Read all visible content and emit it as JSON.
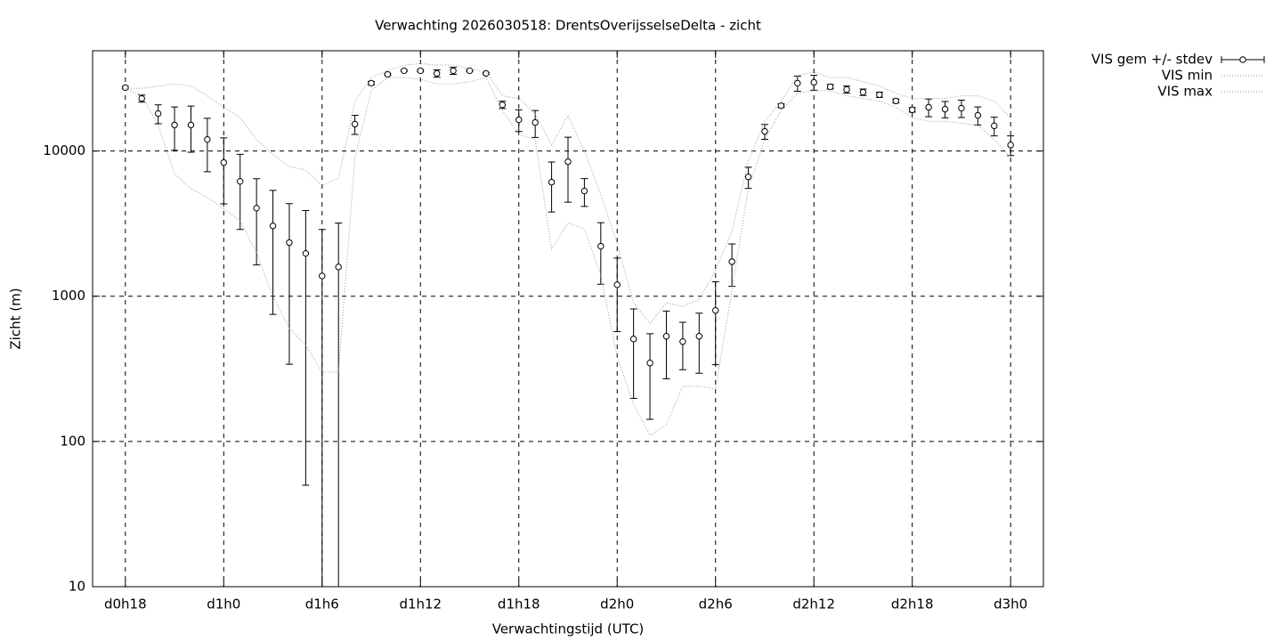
{
  "chart_data": {
    "type": "errorbar",
    "title": "Verwachting 2026030518: DrentsOverijsselseDelta - zicht",
    "x_label": "Verwachtingstijd (UTC)",
    "y_label": "Zicht (m)",
    "log_y": true,
    "grid": true,
    "legend": "outside-top-right",
    "xlim": [
      16,
      74
    ],
    "ylim": [
      10,
      49000
    ],
    "xticks": [
      {
        "value": 18,
        "label": "d0h18"
      },
      {
        "value": 24,
        "label": "d1h0"
      },
      {
        "value": 30,
        "label": "d1h6"
      },
      {
        "value": 36,
        "label": "d1h12"
      },
      {
        "value": 42,
        "label": "d1h18"
      },
      {
        "value": 48,
        "label": "d2h0"
      },
      {
        "value": 54,
        "label": "d2h6"
      },
      {
        "value": 60,
        "label": "d2h12"
      },
      {
        "value": 66,
        "label": "d2h18"
      },
      {
        "value": 72,
        "label": "d3h0"
      }
    ],
    "yticks": [
      10,
      100,
      1000,
      10000
    ],
    "x": [
      18,
      19,
      20,
      21,
      22,
      23,
      24,
      25,
      26,
      27,
      28,
      29,
      30,
      31,
      32,
      33,
      34,
      35,
      36,
      37,
      38,
      39,
      40,
      41,
      42,
      43,
      44,
      45,
      46,
      47,
      48,
      49,
      50,
      51,
      52,
      53,
      54,
      55,
      56,
      57,
      58,
      59,
      60,
      61,
      62,
      63,
      64,
      65,
      66,
      67,
      68,
      69,
      70,
      71,
      72
    ],
    "series": [
      {
        "name": "VIS gem +/- stdev",
        "color": "#000000",
        "style": "errorbars",
        "values": [
          27300,
          23000,
          18100,
          15100,
          15100,
          12000,
          8320,
          6180,
          4040,
          3050,
          2340,
          1970,
          1380,
          1590,
          15300,
          29300,
          33700,
          35700,
          35700,
          34200,
          35700,
          35700,
          34200,
          20800,
          16400,
          15700,
          6100,
          8440,
          5300,
          2210,
          1200,
          508,
          347,
          530,
          487,
          530,
          798,
          1730,
          6630,
          13640,
          20500,
          29300,
          29700,
          27700,
          26500,
          25400,
          24400,
          22100,
          19200,
          20000,
          19400,
          19700,
          17600,
          14900,
          11000
        ],
        "stdev": [
          500,
          1300,
          2700,
          5000,
          5300,
          4800,
          4000,
          3300,
          2400,
          2300,
          2000,
          1920,
          1500,
          1600,
          2300,
          800,
          500,
          500,
          600,
          2000,
          2000,
          600,
          500,
          1200,
          2800,
          3300,
          2300,
          4000,
          1150,
          1000,
          630,
          310,
          205,
          260,
          175,
          235,
          460,
          560,
          1100,
          1600,
          600,
          3500,
          3500,
          1000,
          1500,
          1300,
          1000,
          700,
          700,
          2800,
          2500,
          2700,
          2500,
          2200,
          1700
        ]
      },
      {
        "name": "VIS min",
        "color": "#999999",
        "style": "dotted",
        "values": [
          27000,
          24000,
          15000,
          7000,
          5500,
          4800,
          4000,
          3300,
          2000,
          1000,
          600,
          460,
          300,
          300,
          9000,
          26000,
          32000,
          32000,
          31000,
          29000,
          29000,
          30000,
          32000,
          19000,
          13000,
          12000,
          2100,
          3200,
          2900,
          1400,
          380,
          180,
          110,
          130,
          240,
          240,
          230,
          1100,
          5500,
          12000,
          19000,
          25000,
          26000,
          26000,
          24000,
          23000,
          22000,
          20000,
          17000,
          16000,
          16000,
          15500,
          15000,
          12000,
          9000
        ]
      },
      {
        "name": "VIS max",
        "color": "#999999",
        "style": "dotted",
        "values": [
          27000,
          27000,
          28000,
          29000,
          28000,
          24000,
          20000,
          17000,
          12000,
          9500,
          7800,
          7400,
          5800,
          6500,
          22000,
          32000,
          36000,
          39000,
          40000,
          39000,
          39000,
          37000,
          35000,
          24000,
          23000,
          18000,
          11000,
          17500,
          10000,
          5000,
          2300,
          900,
          650,
          900,
          850,
          950,
          1500,
          2800,
          8500,
          16000,
          22000,
          33000,
          35000,
          32000,
          32000,
          30000,
          28000,
          25000,
          23000,
          23000,
          23000,
          24000,
          24000,
          22000,
          17000
        ]
      }
    ]
  }
}
